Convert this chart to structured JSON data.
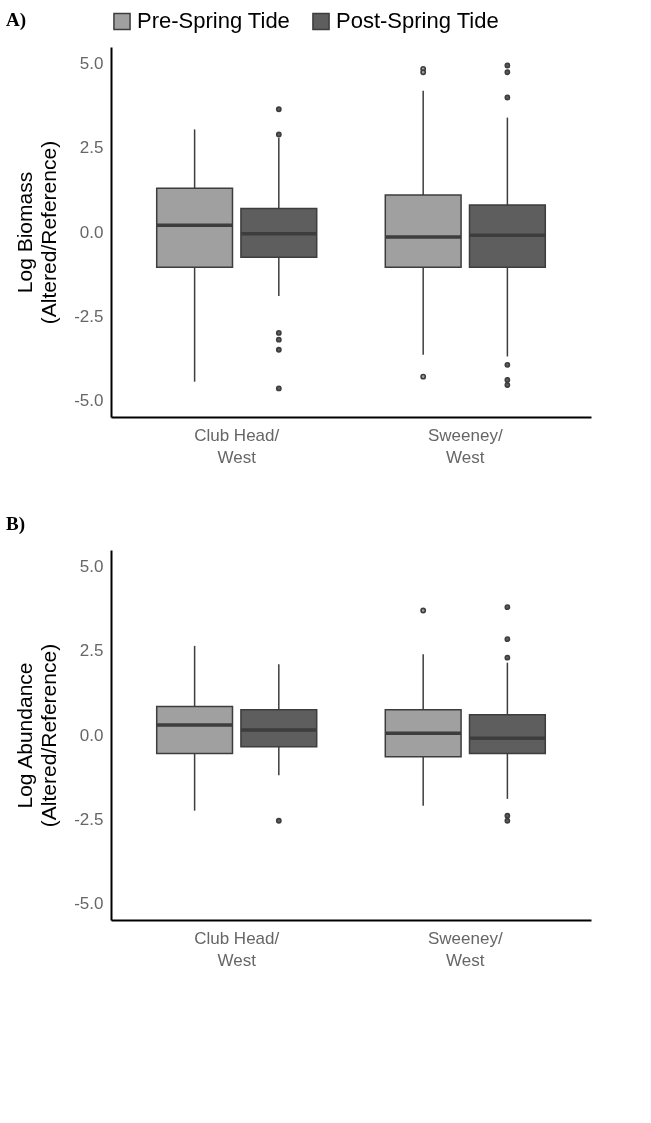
{
  "chart_data": [
    {
      "type": "box",
      "title": "A)",
      "ylabel": "Log Biomass\n(Altered/Reference)",
      "categories": [
        "Club Head/\nWest",
        "Sweeney/\nWest"
      ],
      "ylim": [
        -5.5,
        5.5
      ],
      "yticks": [
        {
          "value": -5,
          "label": "-5.0"
        },
        {
          "value": -2.5,
          "label": "-2.5"
        },
        {
          "value": 0,
          "label": "0.0"
        },
        {
          "value": 2.5,
          "label": "2.5"
        },
        {
          "value": 5,
          "label": "5.0"
        }
      ],
      "legend": "top",
      "grid": false,
      "series": [
        {
          "name": "Pre-Spring Tide",
          "color": "#a0a0a0",
          "boxes": [
            {
              "low": -4.45,
              "q1": -1.05,
              "median": 0.2,
              "q3": 1.3,
              "high": 3.05
            },
            {
              "low": -3.65,
              "q1": -1.05,
              "median": -0.15,
              "q3": 1.1,
              "high": 4.2,
              "outliers": [
                4.85,
                4.75,
                -4.3
              ]
            }
          ]
        },
        {
          "name": "Post-Spring Tide",
          "color": "#5e5e5e",
          "boxes": [
            {
              "low": -1.9,
              "q1": -0.75,
              "median": -0.05,
              "q3": 0.7,
              "high": 2.8,
              "outliers": [
                3.65,
                2.9,
                -3.0,
                -3.2,
                -3.5,
                -4.65
              ]
            },
            {
              "low": -3.7,
              "q1": -1.05,
              "median": -0.1,
              "q3": 0.8,
              "high": 3.4,
              "outliers": [
                4.95,
                4.75,
                4.0,
                -3.95,
                -4.4,
                -4.55
              ]
            }
          ]
        }
      ]
    },
    {
      "type": "box",
      "title": "B)",
      "ylabel": "Log Abundance\n(Altered/Reference)",
      "categories": [
        "Club Head/\nWest",
        "Sweeney/\nWest"
      ],
      "ylim": [
        -5.5,
        5.5
      ],
      "yticks": [
        {
          "value": -5,
          "label": "-5.0"
        },
        {
          "value": -2.5,
          "label": "-2.5"
        },
        {
          "value": 0,
          "label": "0.0"
        },
        {
          "value": 2.5,
          "label": "2.5"
        },
        {
          "value": 5,
          "label": "5.0"
        }
      ],
      "grid": false,
      "series": [
        {
          "name": "Pre-Spring Tide",
          "color": "#a0a0a0",
          "boxes": [
            {
              "low": -2.25,
              "q1": -0.55,
              "median": 0.3,
              "q3": 0.85,
              "high": 2.65
            },
            {
              "low": -2.1,
              "q1": -0.65,
              "median": 0.05,
              "q3": 0.75,
              "high": 2.4,
              "outliers": [
                3.7
              ]
            }
          ]
        },
        {
          "name": "Post-Spring Tide",
          "color": "#5e5e5e",
          "boxes": [
            {
              "low": -1.2,
              "q1": -0.35,
              "median": 0.15,
              "q3": 0.75,
              "high": 2.1,
              "outliers": [
                -2.55
              ]
            },
            {
              "low": -1.9,
              "q1": -0.55,
              "median": -0.1,
              "q3": 0.6,
              "high": 2.15,
              "outliers": [
                3.8,
                2.85,
                2.3,
                -2.4,
                -2.55
              ]
            }
          ]
        }
      ]
    }
  ]
}
